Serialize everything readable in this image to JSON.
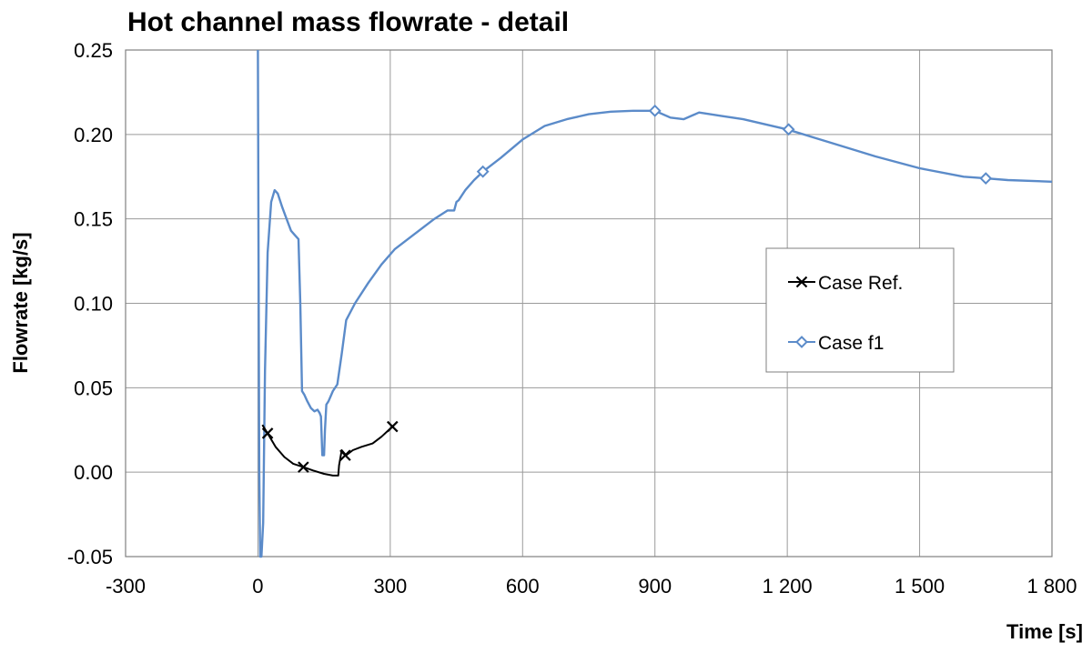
{
  "chart_data": {
    "type": "line",
    "title": "Hot channel mass flowrate - detail",
    "xlabel": "Time [s]",
    "ylabel": "Flowrate [kg/s]",
    "xlim": [
      -300,
      1800
    ],
    "ylim": [
      -0.05,
      0.25
    ],
    "x_ticks": [
      -300,
      0,
      300,
      600,
      900,
      1200,
      1500,
      1800
    ],
    "x_tick_labels": [
      "-300",
      "0",
      "300",
      "600",
      "900",
      "1 200",
      "1 500",
      "1 800"
    ],
    "y_ticks": [
      -0.05,
      0.0,
      0.05,
      0.1,
      0.15,
      0.2,
      0.25
    ],
    "y_tick_labels": [
      "-0.05",
      "0.00",
      "0.05",
      "0.10",
      "0.15",
      "0.20",
      "0.25"
    ],
    "grid": true,
    "legend_position": "right",
    "series": [
      {
        "name": "Case Ref.",
        "color": "#000000",
        "marker": "x",
        "x": [
          10,
          22,
          40,
          60,
          80,
          103,
          125,
          150,
          170,
          182,
          184,
          190,
          200,
          215,
          235,
          260,
          280,
          305
        ],
        "y": [
          0.028,
          0.023,
          0.015,
          0.009,
          0.005,
          0.003,
          0.001,
          -0.001,
          -0.002,
          -0.002,
          0.004,
          0.013,
          0.01,
          0.013,
          0.015,
          0.017,
          0.021,
          0.027
        ],
        "marker_x": [
          22,
          103,
          198,
          305
        ],
        "marker_y": [
          0.023,
          0.003,
          0.01,
          0.027
        ]
      },
      {
        "name": "Case f1",
        "color": "#5b8bc9",
        "marker": "diamond",
        "x": [
          0,
          3,
          5,
          8,
          12,
          16,
          22,
          30,
          38,
          45,
          55,
          65,
          75,
          85,
          92,
          96,
          100,
          105,
          112,
          120,
          128,
          135,
          140,
          143,
          146,
          150,
          152,
          155,
          160,
          165,
          170,
          180,
          190,
          200,
          220,
          250,
          280,
          310,
          350,
          400,
          430,
          445,
          450,
          455,
          470,
          490,
          510,
          550,
          600,
          650,
          700,
          750,
          800,
          850,
          900,
          935,
          965,
          1000,
          1050,
          1100,
          1150,
          1200,
          1300,
          1400,
          1500,
          1600,
          1650,
          1700,
          1800
        ],
        "y": [
          0.25,
          0.0,
          -0.05,
          -0.05,
          -0.03,
          0.06,
          0.13,
          0.16,
          0.167,
          0.165,
          0.157,
          0.15,
          0.143,
          0.14,
          0.138,
          0.1,
          0.048,
          0.046,
          0.042,
          0.038,
          0.036,
          0.037,
          0.035,
          0.033,
          0.01,
          0.01,
          0.025,
          0.04,
          0.042,
          0.045,
          0.048,
          0.052,
          0.07,
          0.09,
          0.1,
          0.112,
          0.123,
          0.132,
          0.14,
          0.15,
          0.155,
          0.155,
          0.16,
          0.161,
          0.167,
          0.173,
          0.178,
          0.186,
          0.197,
          0.205,
          0.209,
          0.212,
          0.2135,
          0.214,
          0.214,
          0.21,
          0.209,
          0.213,
          0.211,
          0.209,
          0.206,
          0.203,
          0.195,
          0.187,
          0.18,
          0.175,
          0.174,
          0.173,
          0.172
        ],
        "marker_x": [
          510,
          900,
          1203,
          1650
        ],
        "marker_y": [
          0.178,
          0.214,
          0.203,
          0.174
        ]
      }
    ]
  }
}
